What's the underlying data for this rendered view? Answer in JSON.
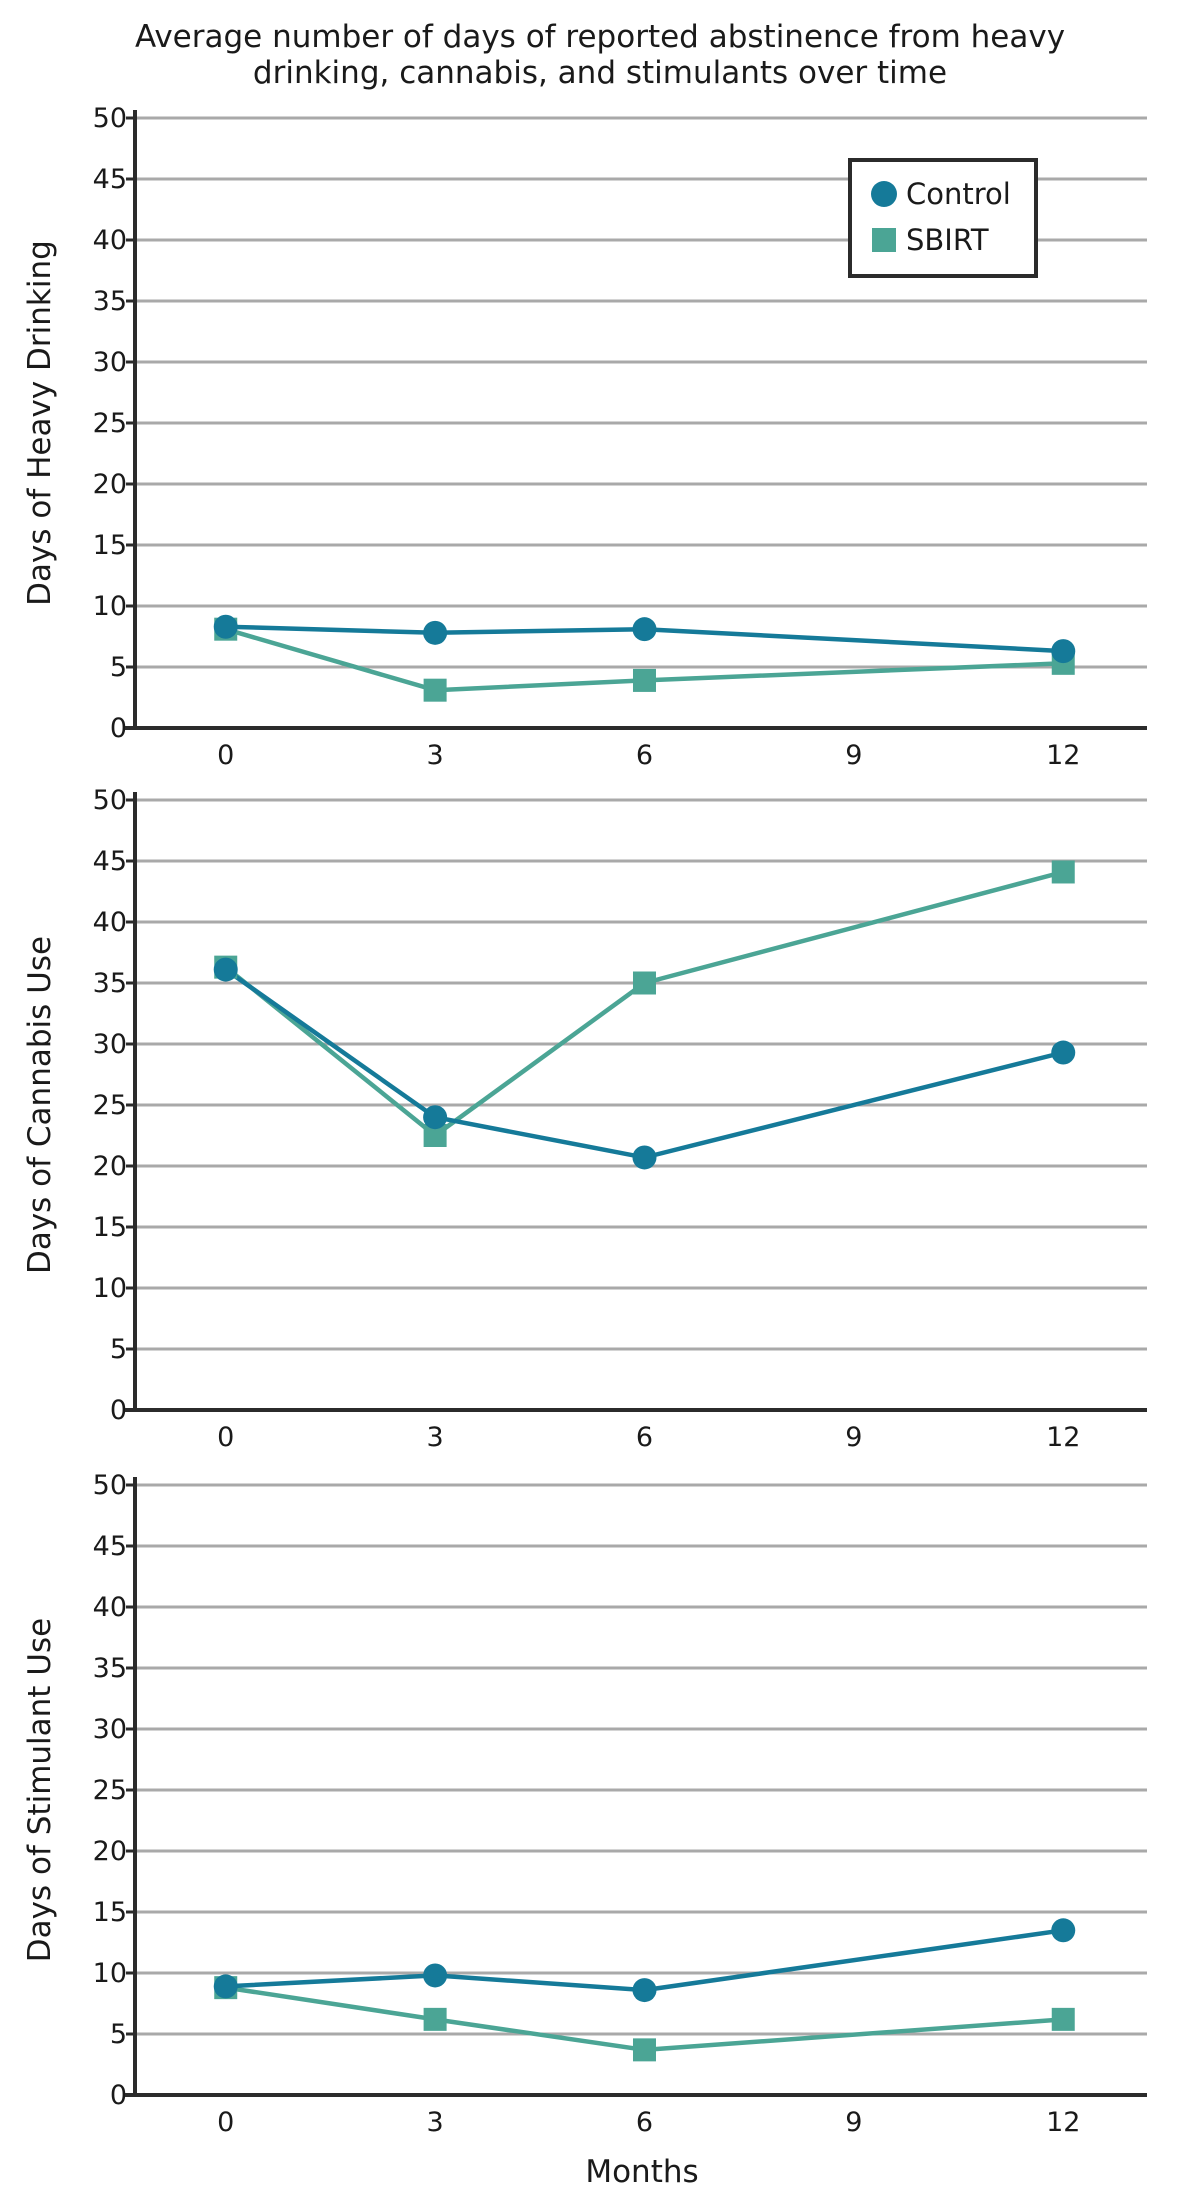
{
  "figure": {
    "title_lines": [
      "Average number of days of reported abstinence from heavy",
      "drinking, cannabis, and stimulants over time"
    ],
    "xlabel": "Months"
  },
  "legend": {
    "placement": "top-right",
    "entries": [
      {
        "name": "Control",
        "marker": "circle",
        "color": "#157a99"
      },
      {
        "name": "SBIRT",
        "marker": "square",
        "color": "#4ba595"
      }
    ]
  },
  "chart_data": [
    {
      "type": "line",
      "ylabel": "Days of Heavy Drinking",
      "xlabel": "",
      "x": [
        0,
        3,
        6,
        12
      ],
      "xticks": [
        0,
        3,
        6,
        9,
        12
      ],
      "xlim": [
        -1.3,
        13.2
      ],
      "ylim": [
        0,
        50
      ],
      "yticks": [
        0,
        5,
        10,
        15,
        20,
        25,
        30,
        35,
        40,
        45,
        50
      ],
      "grid": true,
      "series": [
        {
          "name": "Control",
          "values": [
            8.3,
            7.8,
            8.1,
            6.3
          ]
        },
        {
          "name": "SBIRT",
          "values": [
            8.1,
            3.1,
            3.9,
            5.3
          ]
        }
      ]
    },
    {
      "type": "line",
      "ylabel": "Days of Cannabis Use",
      "xlabel": "",
      "x": [
        0,
        3,
        6,
        12
      ],
      "xticks": [
        0,
        3,
        6,
        9,
        12
      ],
      "xlim": [
        -1.3,
        13.2
      ],
      "ylim": [
        0,
        50
      ],
      "yticks": [
        0,
        5,
        10,
        15,
        20,
        25,
        30,
        35,
        40,
        45,
        50
      ],
      "grid": true,
      "series": [
        {
          "name": "Control",
          "values": [
            36.1,
            24.0,
            20.7,
            29.3
          ]
        },
        {
          "name": "SBIRT",
          "values": [
            36.3,
            22.5,
            35.0,
            44.1
          ]
        }
      ]
    },
    {
      "type": "line",
      "ylabel": "Days of Stimulant Use",
      "xlabel": "Months",
      "x": [
        0,
        3,
        6,
        12
      ],
      "xticks": [
        0,
        3,
        6,
        9,
        12
      ],
      "xlim": [
        -1.3,
        13.2
      ],
      "ylim": [
        0,
        50
      ],
      "yticks": [
        0,
        5,
        10,
        15,
        20,
        25,
        30,
        35,
        40,
        45,
        50
      ],
      "grid": true,
      "series": [
        {
          "name": "Control",
          "values": [
            8.9,
            9.8,
            8.6,
            13.5
          ]
        },
        {
          "name": "SBIRT",
          "values": [
            8.8,
            6.2,
            3.7,
            6.2
          ]
        }
      ]
    }
  ]
}
